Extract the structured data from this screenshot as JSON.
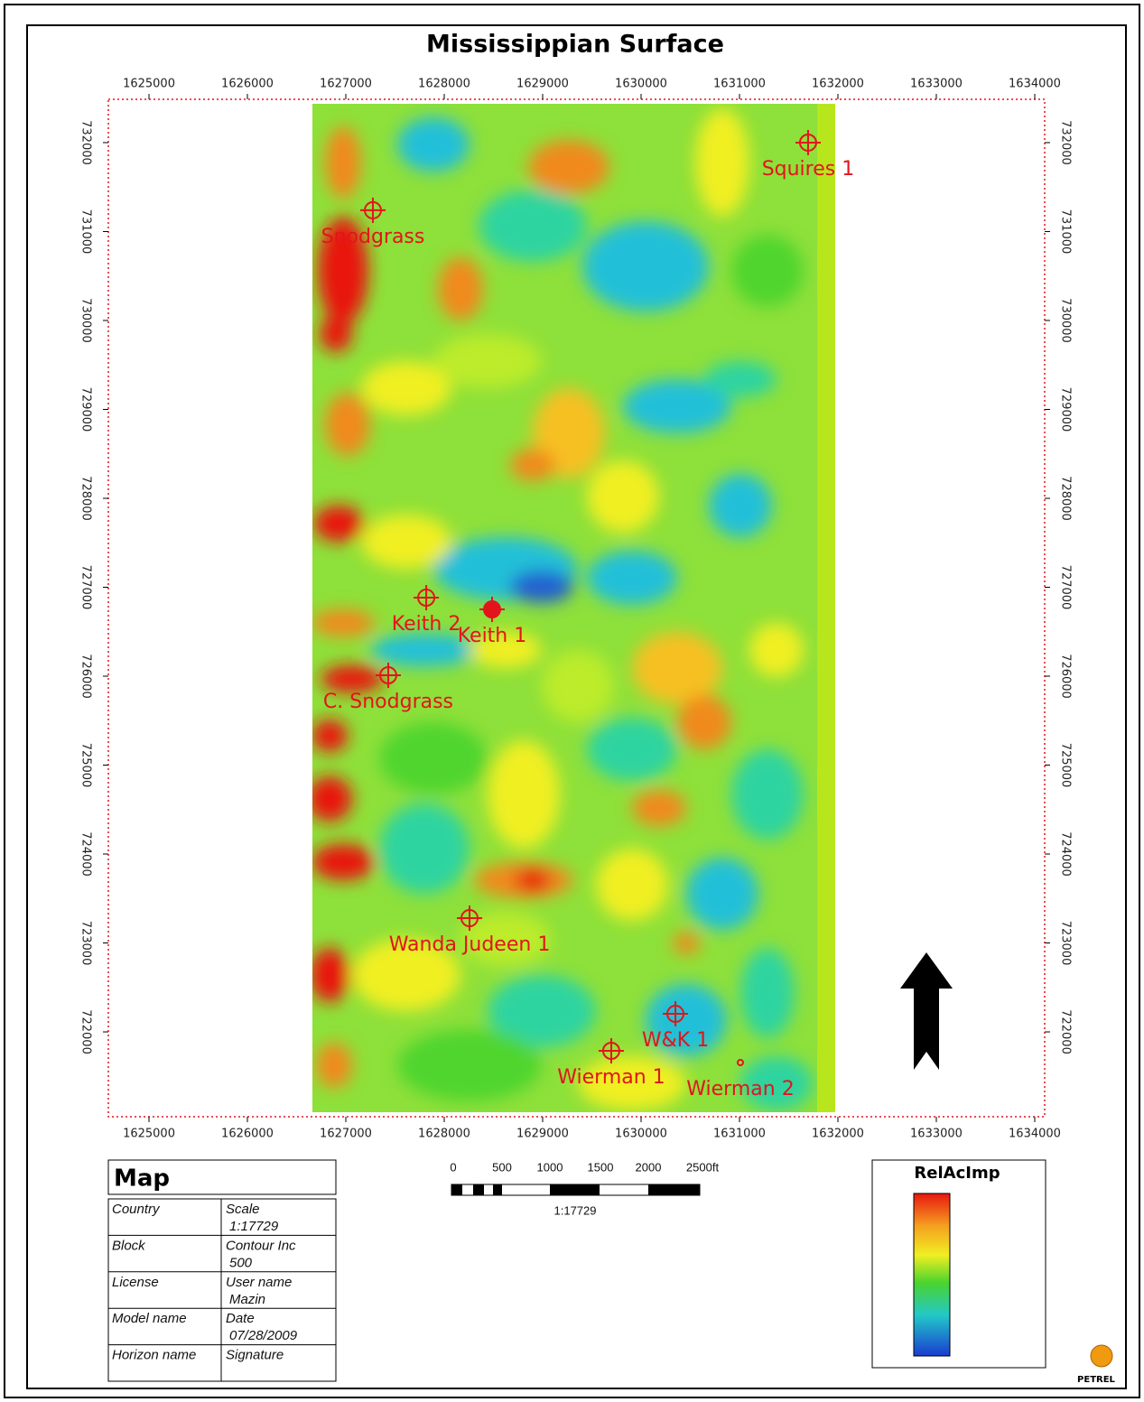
{
  "title": "Mississippian Surface",
  "map": {
    "xlim": [
      1624587,
      1634101
    ],
    "ylim": [
      721046,
      732487
    ],
    "xticks": [
      1625000,
      1626000,
      1627000,
      1628000,
      1629000,
      1630000,
      1631000,
      1632000,
      1633000,
      1634000
    ],
    "yticks": [
      722000,
      723000,
      724000,
      725000,
      726000,
      727000,
      728000,
      729000,
      730000,
      731000,
      732000
    ],
    "wells": [
      {
        "name": "Squires 1",
        "x": 1631697,
        "y": 732000,
        "marker": "open"
      },
      {
        "name": "Snodgrass",
        "x": 1627275,
        "y": 731239,
        "marker": "open"
      },
      {
        "name": "Keith 2",
        "x": 1627817,
        "y": 726883,
        "marker": "open"
      },
      {
        "name": "Keith 1",
        "x": 1628486,
        "y": 726751,
        "marker": "filled"
      },
      {
        "name": "C. Snodgrass",
        "x": 1627431,
        "y": 726010,
        "marker": "open"
      },
      {
        "name": "Wanda Judeen 1",
        "x": 1628257,
        "y": 723279,
        "marker": "open"
      },
      {
        "name": "W&K 1",
        "x": 1630349,
        "y": 722203,
        "marker": "open"
      },
      {
        "name": "Wierman 1",
        "x": 1629697,
        "y": 721787,
        "marker": "open"
      },
      {
        "name": "Wierman 2",
        "x": 1631009,
        "y": 721655,
        "marker": "small"
      }
    ]
  },
  "info_table": {
    "title": "Map",
    "rows": [
      {
        "label": "Country",
        "field": "Scale",
        "value": "1:17729"
      },
      {
        "label": "Block",
        "field": "Contour Inc",
        "value": "500"
      },
      {
        "label": "License",
        "field": "User name",
        "value": "Mazin"
      },
      {
        "label": "Model name",
        "field": "Date",
        "value": "07/28/2009"
      },
      {
        "label": "Horizon name",
        "field": "Signature"
      }
    ]
  },
  "scale_bar": {
    "labels": [
      "0",
      "500",
      "1000",
      "1500",
      "2000",
      "2500ft"
    ],
    "scale": "1:17729"
  },
  "legend": {
    "title": "RelAcImp"
  },
  "logo": "PETREL"
}
